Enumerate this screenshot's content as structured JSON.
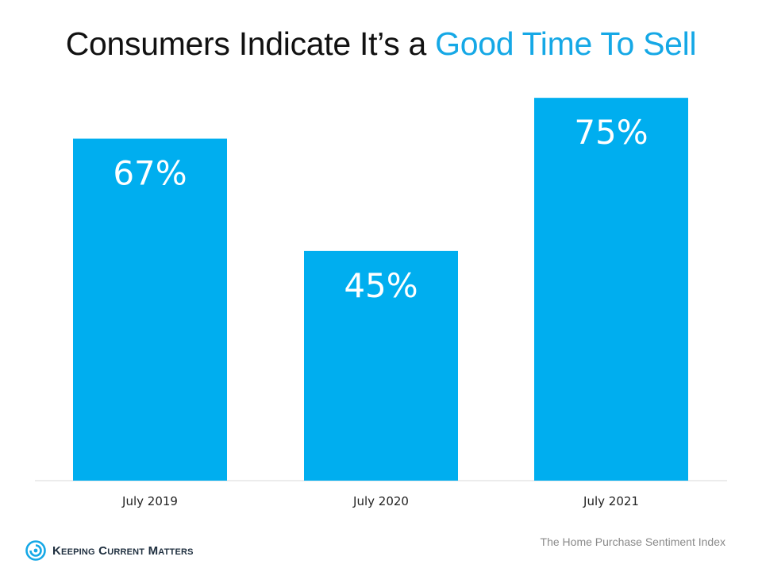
{
  "title": {
    "main": "Consumers Indicate It’s a",
    "accent": "Good Time To Sell"
  },
  "colors": {
    "accent": "#15a8e6",
    "bar": "#00aeef",
    "title": "#111111"
  },
  "chart_data": {
    "type": "bar",
    "title": "Consumers Indicate It’s a Good Time To Sell",
    "categories": [
      "July 2019",
      "July 2020",
      "July 2021"
    ],
    "values": [
      67,
      45,
      75
    ],
    "value_labels": [
      "67%",
      "45%",
      "75%"
    ],
    "xlabel": "",
    "ylabel": "",
    "ylim": [
      0,
      75.8
    ],
    "grid": false,
    "legend": "none"
  },
  "source": "The Home Purchase Sentiment Index",
  "logo": {
    "text": "Keeping Current Matters",
    "icon": "kcm-swirl-icon"
  }
}
